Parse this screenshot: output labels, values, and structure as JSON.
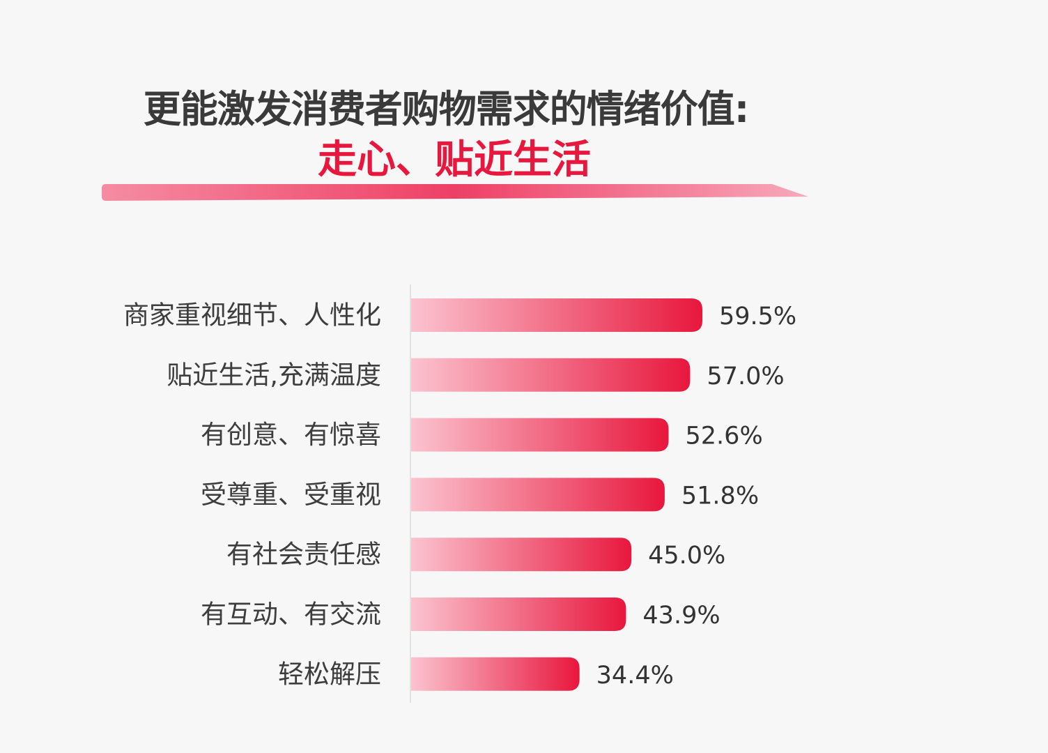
{
  "title": {
    "line1": "更能激发消费者购物需求的情绪价值:",
    "line2": "走心、贴近生活"
  },
  "colors": {
    "accent": "#e8173d",
    "bar_start": "#fbc3cf",
    "bar_end": "#e8173d",
    "title_text": "#3a3a3a",
    "background": "#f7f7f7"
  },
  "chart_data": {
    "type": "bar",
    "orientation": "horizontal",
    "categories": [
      "商家重视细节、人性化",
      "贴近生活,充满温度",
      "有创意、有惊喜",
      "受尊重、受重视",
      "有社会责任感",
      "有互动、有交流",
      "轻松解压"
    ],
    "values": [
      59.5,
      57.0,
      52.6,
      51.8,
      45.0,
      43.9,
      34.4
    ],
    "value_labels": [
      "59.5%",
      "57.0%",
      "52.6%",
      "51.8%",
      "45.0%",
      "43.9%",
      "34.4%"
    ],
    "unit": "%",
    "xlim": [
      0,
      59.5
    ],
    "grid": false,
    "legend": "none"
  }
}
